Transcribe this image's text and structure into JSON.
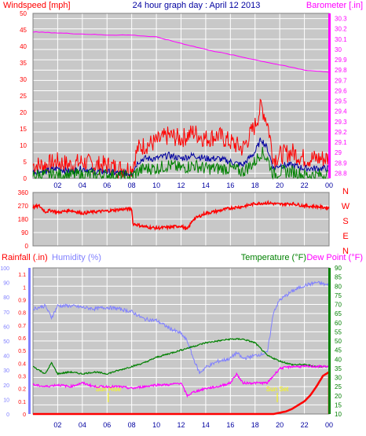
{
  "header": {
    "left_label": "Windspeed [mph]",
    "title": "24 hour graph day : April 12 2013",
    "right_label": "Barometer [.in]"
  },
  "colors": {
    "panel_bg": "#c8c8c8",
    "grid": "#ffffff",
    "wind_gust": "#ff0000",
    "wind_avg": "#0000a0",
    "wind_low": "#008000",
    "barometer": "#ff00ff",
    "wind_dir": "#ff0000",
    "rainfall": "#ff0000",
    "humidity": "#8080ff",
    "temperature": "#008000",
    "dewpoint": "#ff00ff",
    "title": "#0000a0",
    "sun_label": "#ffff00"
  },
  "chart_data": [
    {
      "id": "wind",
      "type": "line",
      "ylabel_left": "Windspeed [mph]",
      "ylabel_right": "Barometer [.in]",
      "y_left_ticks": [
        "50",
        "45",
        "40",
        "35",
        "30",
        "25",
        "20",
        "15",
        "10",
        "5",
        "0"
      ],
      "y_right_ticks": [
        "30.3",
        "30.2",
        "30.1",
        "30",
        "29.9",
        "29.8",
        "29.7",
        "29.6",
        "29.5",
        "29.4",
        "29.3",
        "29.2",
        "29.1",
        "29",
        "28.9",
        "28.8"
      ],
      "ylim_left": [
        0,
        50
      ],
      "ylim_right": [
        28.75,
        30.35
      ],
      "x_ticks": [
        "02",
        "04",
        "06",
        "08",
        "10",
        "12",
        "14",
        "16",
        "18",
        "20",
        "22",
        "00"
      ],
      "grid": true,
      "series": [
        {
          "key": "gust",
          "x": [
            0,
            1,
            2,
            3,
            4,
            5,
            6,
            7,
            8,
            8.5,
            9,
            10,
            11,
            12,
            13,
            14,
            15,
            16,
            17,
            18,
            18.5,
            19,
            19.5,
            20,
            21,
            22,
            23,
            24
          ],
          "y": [
            4,
            4,
            5,
            4,
            5,
            4,
            4,
            3,
            3,
            9,
            10,
            11,
            13,
            12,
            14,
            12,
            13,
            11,
            9,
            16,
            22,
            17,
            6,
            7,
            8,
            6,
            6,
            6
          ]
        },
        {
          "key": "avg",
          "x": [
            0,
            1,
            2,
            3,
            4,
            5,
            6,
            7,
            8,
            8.5,
            9,
            10,
            11,
            12,
            13,
            14,
            15,
            16,
            17,
            18,
            18.5,
            19,
            19.5,
            20,
            21,
            22,
            23,
            24
          ],
          "y": [
            2,
            2,
            3,
            2,
            3,
            2,
            2,
            1.5,
            1.5,
            5,
            6,
            6,
            7,
            6,
            7,
            6,
            6,
            5,
            4,
            8,
            12,
            9,
            3,
            4,
            4,
            3,
            3,
            3
          ]
        },
        {
          "key": "low",
          "x": [
            0,
            1,
            2,
            3,
            4,
            5,
            6,
            7,
            8,
            8.5,
            9,
            10,
            11,
            12,
            13,
            14,
            15,
            16,
            17,
            18,
            18.5,
            19,
            19.5,
            20,
            21,
            22,
            23,
            24
          ],
          "y": [
            1,
            1,
            1,
            1,
            1,
            1,
            1,
            0.5,
            0.5,
            2,
            3,
            3,
            4,
            3,
            4,
            3,
            3,
            3,
            2,
            5,
            8,
            6,
            1,
            2,
            2,
            1,
            1,
            1
          ]
        },
        {
          "key": "barometer",
          "axis": "right",
          "x": [
            0,
            2,
            4,
            6,
            8,
            10,
            12,
            14,
            16,
            18,
            20,
            22,
            24
          ],
          "y": [
            30.17,
            30.16,
            30.15,
            30.14,
            30.14,
            30.12,
            30.06,
            30.0,
            29.95,
            29.9,
            29.85,
            29.8,
            29.78
          ]
        }
      ]
    },
    {
      "id": "direction",
      "type": "line",
      "y_ticks": [
        "360",
        "270",
        "180",
        "90",
        "0"
      ],
      "y_right_labels": [
        "N",
        "W",
        "S",
        "E",
        "N"
      ],
      "ylim": [
        0,
        360
      ],
      "grid": true,
      "series": [
        {
          "key": "direction",
          "x": [
            0,
            0.5,
            1,
            1.5,
            2,
            3,
            4,
            5,
            6,
            7,
            8,
            8.1,
            9,
            10,
            11,
            12,
            12.5,
            13,
            14,
            15,
            16,
            17,
            18,
            19,
            20,
            21,
            22,
            23,
            24
          ],
          "y": [
            260,
            270,
            230,
            240,
            225,
            240,
            220,
            230,
            235,
            245,
            250,
            150,
            130,
            120,
            125,
            135,
            110,
            180,
            220,
            235,
            255,
            265,
            285,
            290,
            280,
            285,
            270,
            265,
            255
          ]
        }
      ]
    },
    {
      "id": "climate",
      "type": "line",
      "y_left_ticks_humidity": [
        "100",
        "90",
        "80",
        "70",
        "60",
        "50",
        "40",
        "30",
        "20",
        "10",
        "0"
      ],
      "y_left_ticks_rain": [
        "1.1",
        "1",
        "0.9",
        "0.8",
        "0.7",
        "0.6",
        "0.5",
        "0.4",
        "0.3",
        "0.2",
        "0.1",
        "0"
      ],
      "y_right_ticks": [
        "90",
        "85",
        "80",
        "75",
        "70",
        "65",
        "60",
        "55",
        "50",
        "45",
        "40",
        "35",
        "30",
        "25",
        "20",
        "15",
        "10"
      ],
      "ylim_humidity": [
        0,
        100
      ],
      "ylim_rain": [
        0,
        1.15
      ],
      "ylim_temp": [
        10,
        90
      ],
      "x_ticks": [
        "02",
        "04",
        "06",
        "08",
        "10",
        "12",
        "14",
        "16",
        "18",
        "20",
        "22",
        "00"
      ],
      "sun_labels": [
        "Sun Rise",
        "Sun Set"
      ],
      "sun_times": [
        6.1,
        19.8
      ],
      "grid": true,
      "series": [
        {
          "key": "humidity",
          "x": [
            0,
            1,
            1.5,
            2,
            3,
            4,
            5,
            6,
            7,
            8,
            9,
            10,
            11,
            12,
            12.5,
            13,
            13.5,
            14,
            15,
            16,
            16.5,
            17,
            18,
            19,
            19.5,
            20,
            21,
            22,
            23,
            24
          ],
          "y": [
            72,
            74,
            66,
            74,
            74,
            73,
            72,
            73,
            72,
            70,
            65,
            64,
            59,
            55,
            50,
            38,
            28,
            32,
            36,
            38,
            42,
            38,
            40,
            42,
            70,
            78,
            84,
            88,
            90,
            88
          ]
        },
        {
          "key": "temperature",
          "x": [
            0,
            1,
            1.5,
            2,
            3,
            4,
            5,
            6,
            7,
            8,
            9,
            10,
            11,
            12,
            13,
            14,
            15,
            16,
            17,
            18,
            19,
            20,
            21,
            22,
            23,
            24
          ],
          "y": [
            36,
            32,
            38,
            32,
            33,
            32,
            33,
            32,
            34,
            36,
            38,
            41,
            43,
            45,
            47,
            49,
            50,
            51,
            51,
            49,
            42,
            39,
            37,
            37,
            36,
            36
          ]
        },
        {
          "key": "dewpoint",
          "x": [
            0,
            1,
            2,
            3,
            4,
            5,
            6,
            7,
            8,
            9,
            10,
            11,
            12,
            12.5,
            13,
            14,
            15,
            16,
            16.5,
            17,
            18,
            19,
            20,
            21,
            22,
            23,
            24
          ],
          "y": [
            26,
            25,
            26,
            25,
            27,
            25,
            25,
            25,
            24,
            25,
            26,
            26,
            27,
            20,
            22,
            24,
            25,
            27,
            32,
            27,
            27,
            27,
            35,
            36,
            36,
            36,
            36
          ]
        },
        {
          "key": "rainfall",
          "axis": "rain",
          "x": [
            0,
            2,
            4,
            6,
            8,
            10,
            12,
            14,
            16,
            18,
            19,
            19.5,
            20,
            20.5,
            21,
            21.5,
            22,
            22.5,
            23,
            23.5,
            24
          ],
          "y": [
            0,
            0,
            0,
            0,
            0,
            0,
            0,
            0,
            0,
            0,
            0,
            0,
            0.01,
            0.02,
            0.04,
            0.07,
            0.1,
            0.15,
            0.22,
            0.3,
            0.33
          ]
        }
      ],
      "labels": {
        "rainfall": "Rainfall (.in)",
        "humidity": "Humidity (%)",
        "temperature": "Temperature (°F)",
        "dewpoint": "Dew Point (°F)"
      }
    }
  ]
}
